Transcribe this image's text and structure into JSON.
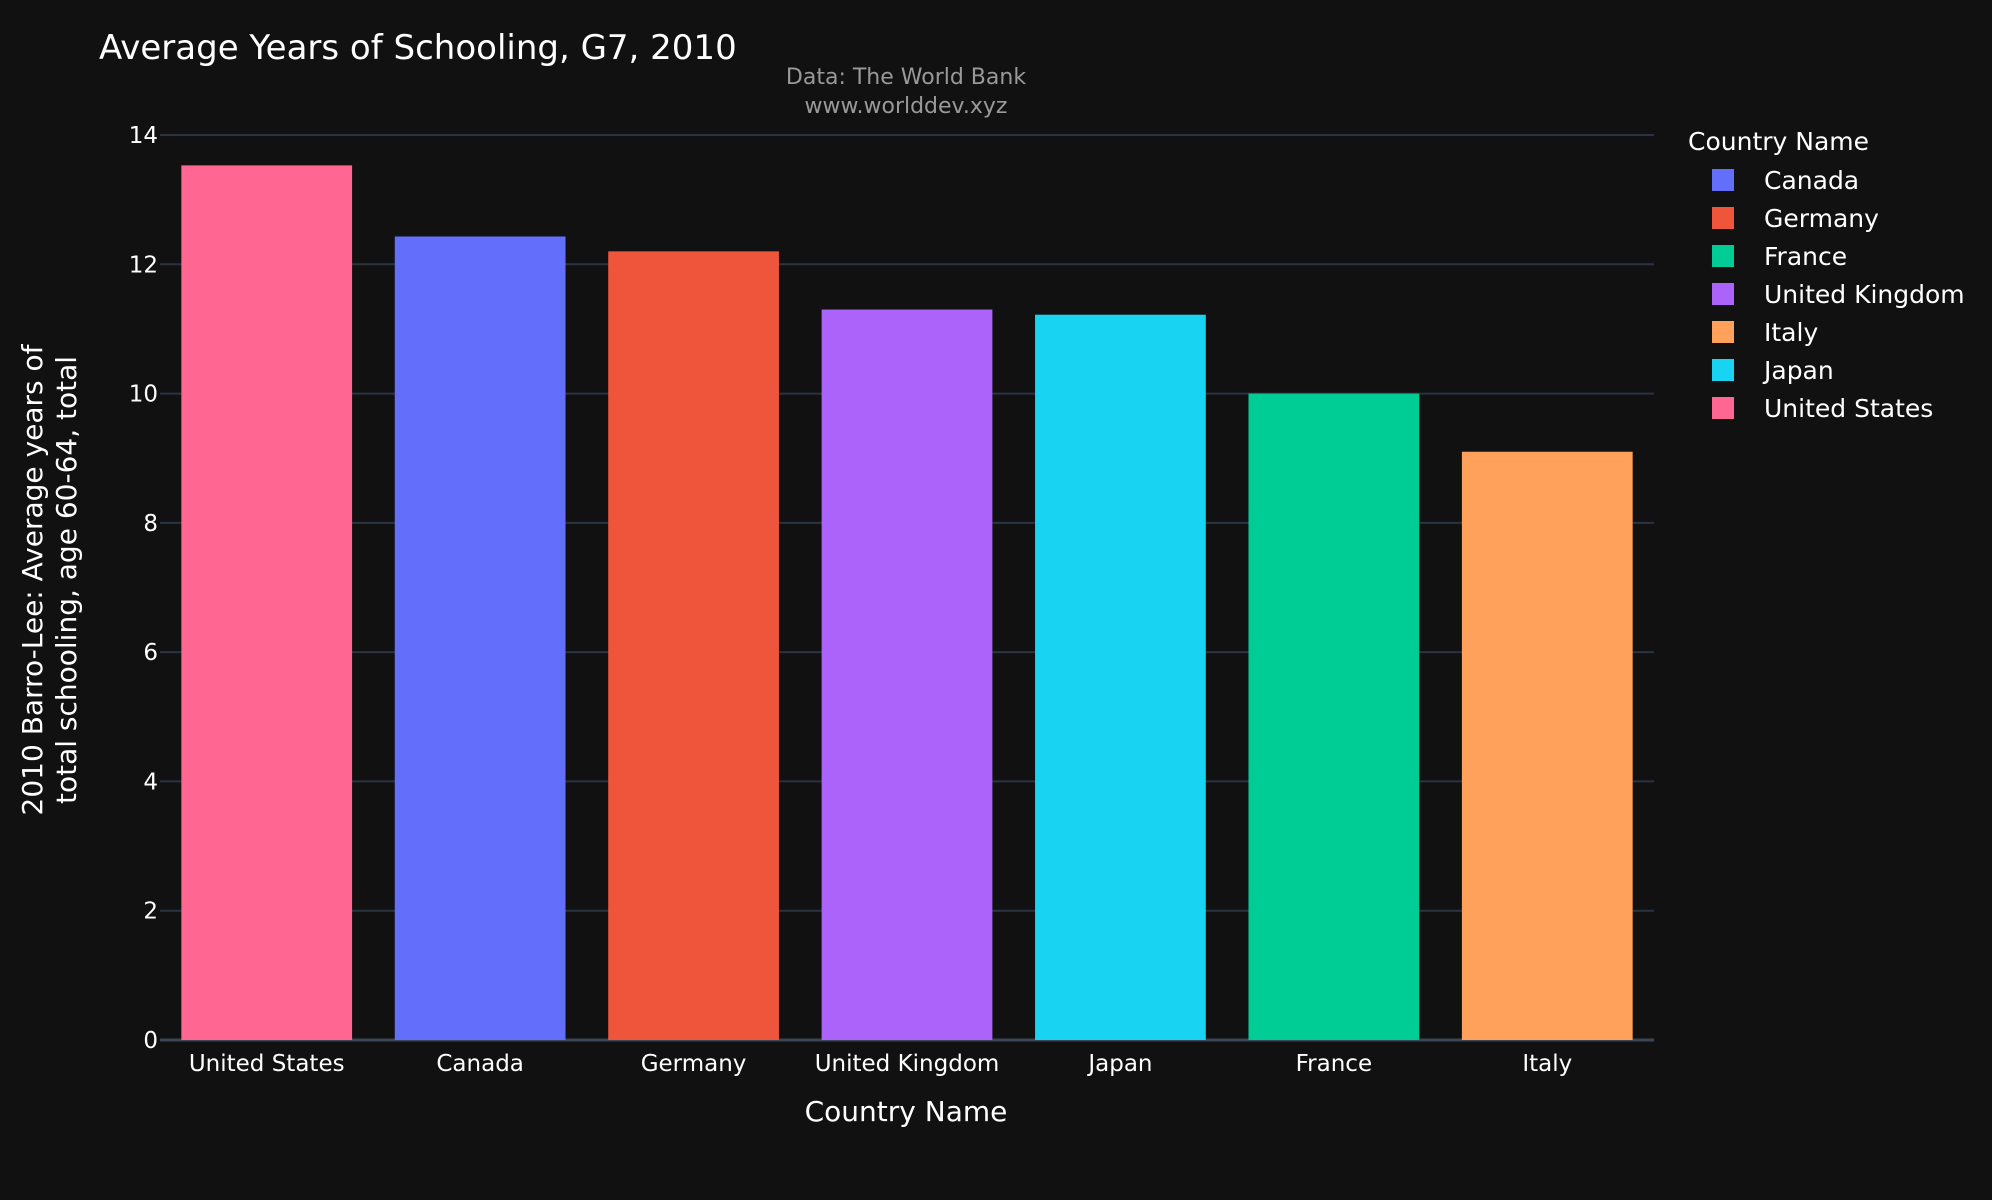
{
  "chart_data": {
    "type": "bar",
    "title": "Average Years of Schooling, G7, 2010",
    "subtitle_lines": [
      "Data: The World Bank",
      "www.worlddev.xyz"
    ],
    "xlabel": "Country Name",
    "ylabel_lines": [
      "2010 Barro-Lee: Average years of",
      "total schooling, age 60-64, total"
    ],
    "ylim": [
      0,
      14
    ],
    "yticks": [
      0,
      2,
      4,
      6,
      8,
      10,
      12,
      14
    ],
    "grid": true,
    "legend": {
      "title": "Country Name",
      "placement": "right",
      "items": [
        "Canada",
        "Germany",
        "France",
        "United Kingdom",
        "Italy",
        "Japan",
        "United States"
      ]
    },
    "categories": [
      "United States",
      "Canada",
      "Germany",
      "United Kingdom",
      "Japan",
      "France",
      "Italy"
    ],
    "values": [
      13.53,
      12.43,
      12.2,
      11.3,
      11.22,
      10.0,
      9.1
    ],
    "colors": {
      "Canada": "#636efa",
      "Germany": "#EF553B",
      "France": "#00cc96",
      "United Kingdom": "#ab63fa",
      "Italy": "#FFA15A",
      "Japan": "#19d3f3",
      "United States": "#FF6692"
    }
  }
}
